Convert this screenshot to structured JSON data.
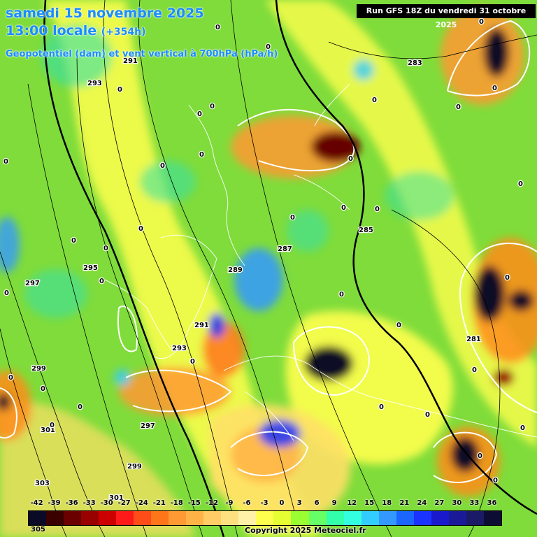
{
  "header": {
    "date": "samedi 15 novembre 2025",
    "time": "13:00 locale",
    "offset": "(+354h)",
    "parameter": "Geopotentiel (dam) et vent vertical à 700hPa (hPa/h)",
    "run": "Run GFS 18Z du vendredi 31 octobre 2025"
  },
  "legend": {
    "labels": [
      "-42",
      "-39",
      "-36",
      "-33",
      "-30",
      "-27",
      "-24",
      "-21",
      "-18",
      "-15",
      "-12",
      "-9",
      "-6",
      "-3",
      "0",
      "3",
      "6",
      "9",
      "12",
      "15",
      "18",
      "21",
      "24",
      "27",
      "30",
      "33",
      "36"
    ],
    "colors": [
      "#0a0a26",
      "#3b0000",
      "#6b0000",
      "#990000",
      "#cc0000",
      "#ff1a1a",
      "#ff4d1a",
      "#ff7519",
      "#ff9933",
      "#ffb347",
      "#ffcc66",
      "#ffe080",
      "#fff2a8",
      "#ffff4d",
      "#e6ff33",
      "#99ff33",
      "#66ff66",
      "#33ffaa",
      "#33ffe0",
      "#33ccff",
      "#3399ff",
      "#1a66ff",
      "#1a33ff",
      "#1a1acc",
      "#1a1a99",
      "#1a1a66",
      "#0d0d33"
    ]
  },
  "geopotential_labels": [
    "291",
    "293",
    "295",
    "297",
    "299",
    "301",
    "303",
    "305",
    "283",
    "285",
    "287",
    "289",
    "281"
  ],
  "vertical_wind_labels": [
    "0"
  ],
  "copyright": "Copyright 2025 Meteociel.fr",
  "corner_value": "305",
  "colors": {
    "background_green": "#7fdc3a",
    "title_blue": "#1a8cff",
    "contour": "#000000",
    "zero_line": "#ffffff"
  }
}
